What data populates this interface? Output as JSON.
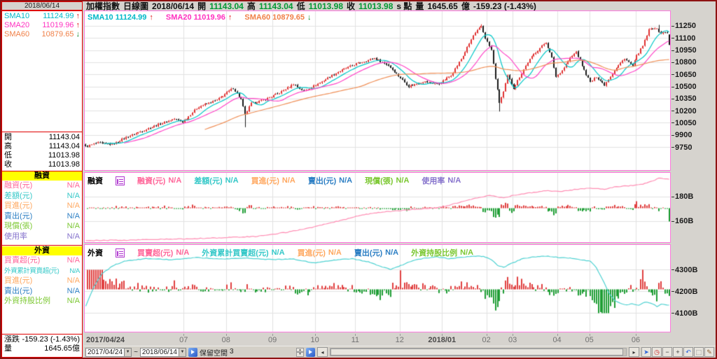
{
  "window": {
    "date_box": "2018/06/14",
    "title": {
      "name": "加權指數",
      "period": "日線圖",
      "date": "2018/06/14",
      "open_label": "開",
      "open": "11143.04",
      "high_label": "高",
      "high": "11143.04",
      "low_label": "低",
      "low": "11013.98",
      "close_label": "收",
      "close": "11013.98",
      "session": "s 點",
      "volume_label": "量",
      "volume": "1645.65",
      "volume_unit": "億",
      "change": "-159.23 (-1.43%)"
    }
  },
  "sidebar": {
    "sma": [
      {
        "label": "SMA10",
        "value": "11124.99",
        "arrow": "↑",
        "color": "#00b8c8",
        "arrow_color": "#e01010"
      },
      {
        "label": "SMA20",
        "value": "11019.96",
        "arrow": "↑",
        "color": "#ff30c0",
        "arrow_color": "#e01010"
      },
      {
        "label": "SMA60",
        "value": "10879.65",
        "arrow": "↓",
        "color": "#f08048",
        "arrow_color": "#0a8a28"
      }
    ],
    "ohlc": [
      {
        "label": "開",
        "value": "11143.04"
      },
      {
        "label": "高",
        "value": "11143.04"
      },
      {
        "label": "低",
        "value": "11013.98"
      },
      {
        "label": "收",
        "value": "11013.98"
      }
    ],
    "margin_section": {
      "header": "融資",
      "rows": [
        {
          "label": "融資(元)",
          "value": "N/A",
          "color": "#ff6699"
        },
        {
          "label": "差額(元)",
          "value": "N/A",
          "color": "#35c8c8"
        },
        {
          "label": "買進(元)",
          "value": "N/A",
          "color": "#ffa860"
        },
        {
          "label": "賣出(元)",
          "value": "N/A",
          "color": "#2d7fc4"
        },
        {
          "label": "現償(張)",
          "value": "N/A",
          "color": "#7cc832"
        },
        {
          "label": "使用率",
          "value": "N/A",
          "color": "#8572cc"
        }
      ]
    },
    "foreign_section": {
      "header": "外資",
      "rows": [
        {
          "label": "買賣超(元)",
          "value": "N/A",
          "color": "#ff6699"
        },
        {
          "label": "外資累計買賣超(元)",
          "value": "N/A",
          "color": "#35c8c8"
        },
        {
          "label": "買進(元)",
          "value": "N/A",
          "color": "#ffa860"
        },
        {
          "label": "賣出(元)",
          "value": "N/A",
          "color": "#2d7fc4"
        },
        {
          "label": "外資持股比例",
          "value": "N/A",
          "color": "#7cc832"
        }
      ]
    },
    "bottom": {
      "change_label": "漲跌",
      "change": "-159.23 (-1.43%)",
      "volume_label": "量",
      "volume": "1645.65億"
    }
  },
  "main_header": {
    "items": [
      {
        "label": "SMA10",
        "value": "11124.99",
        "arrow": "↑",
        "color": "#00b8c8",
        "arrow_color": "#e01010"
      },
      {
        "label": "SMA20",
        "value": "11019.96",
        "arrow": "↑",
        "color": "#ff30c0",
        "arrow_color": "#e01010"
      },
      {
        "label": "SMA60",
        "value": "10879.65",
        "arrow": "↓",
        "color": "#f08048",
        "arrow_color": "#0a8a28"
      }
    ]
  },
  "middle_header": {
    "title": "融資",
    "fields": [
      {
        "label": "融資(元)",
        "value": "N/A",
        "color": "#ff6699"
      },
      {
        "label": "差額(元)",
        "value": "N/A",
        "color": "#35c8c8"
      },
      {
        "label": "買進(元)",
        "value": "N/A",
        "color": "#ffa860"
      },
      {
        "label": "賣出(元)",
        "value": "N/A",
        "color": "#2d7fc4"
      },
      {
        "label": "現償(張)",
        "value": "N/A",
        "color": "#7cc832"
      },
      {
        "label": "使用率",
        "value": "N/A",
        "color": "#8572cc"
      }
    ]
  },
  "bottom_header": {
    "title": "外資",
    "fields": [
      {
        "label": "買賣超(元)",
        "value": "N/A",
        "color": "#ff6699"
      },
      {
        "label": "外資累計買賣超(元)",
        "value": "N/A",
        "color": "#35c8c8"
      },
      {
        "label": "買進(元)",
        "value": "N/A",
        "color": "#ffa860"
      },
      {
        "label": "賣出(元)",
        "value": "N/A",
        "color": "#2d7fc4"
      },
      {
        "label": "外資持股比例",
        "value": "N/A",
        "color": "#7cc832"
      }
    ]
  },
  "statusbar": {
    "from_date": "2017/04/24",
    "tilde": "~",
    "to_date": "2018/06/14",
    "dropdown_glyph": "▼",
    "keep_space_label": "保留空間",
    "keep_space_value": "3",
    "spin_up": "▴",
    "spin_down": "▾",
    "left_arrow": "◂",
    "right_arrow": "▸",
    "tools": [
      {
        "name": "cursor",
        "glyph": "➤",
        "color": "#2a62d9"
      },
      {
        "name": "clock",
        "glyph": "◷",
        "color": "#cc2222"
      },
      {
        "name": "zoom-out",
        "glyph": "−",
        "color": "#333333"
      },
      {
        "name": "zoom-in",
        "glyph": "+",
        "color": "#333333"
      },
      {
        "name": "undo",
        "glyph": "↶",
        "color": "#2a62d9"
      },
      {
        "name": "select-region",
        "glyph": "⬚",
        "color": "#555555"
      },
      {
        "name": "draw",
        "glyph": "✎",
        "color": "#8a5a2a"
      }
    ]
  },
  "chart_data": [
    {
      "type": "candlestick",
      "name": "加權指數 日線圖",
      "date_range": [
        "2017/04/24",
        "2018/06/14"
      ],
      "total_days": 290,
      "ylim": [
        9464,
        11432
      ],
      "yticks": [
        11250,
        11100,
        10950,
        10800,
        10650,
        10500,
        10350,
        10200,
        10050,
        9900,
        9750
      ],
      "month_ticks": [
        [
          "2017/04/24",
          0
        ],
        [
          "07",
          49
        ],
        [
          "08",
          70
        ],
        [
          "09",
          93
        ],
        [
          "10",
          114
        ],
        [
          "11",
          134
        ],
        [
          "12",
          156
        ],
        [
          "2018/01",
          177
        ],
        [
          "02",
          199
        ],
        [
          "03",
          212
        ],
        [
          "04",
          234
        ],
        [
          "05",
          250
        ],
        [
          "06",
          273
        ]
      ],
      "close_anchors": [
        [
          0,
          9755
        ],
        [
          6,
          9800
        ],
        [
          13,
          9780
        ],
        [
          20,
          9870
        ],
        [
          27,
          9940
        ],
        [
          35,
          10020
        ],
        [
          44,
          10100
        ],
        [
          48,
          10060
        ],
        [
          56,
          10250
        ],
        [
          65,
          10330
        ],
        [
          73,
          10480
        ],
        [
          77,
          10340
        ],
        [
          79,
          10150
        ],
        [
          82,
          10290
        ],
        [
          88,
          10330
        ],
        [
          96,
          10420
        ],
        [
          103,
          10530
        ],
        [
          108,
          10440
        ],
        [
          117,
          10560
        ],
        [
          125,
          10680
        ],
        [
          134,
          10780
        ],
        [
          143,
          10850
        ],
        [
          150,
          10760
        ],
        [
          155,
          10630
        ],
        [
          160,
          10500
        ],
        [
          167,
          10560
        ],
        [
          175,
          10530
        ],
        [
          181,
          10640
        ],
        [
          187,
          10880
        ],
        [
          192,
          11130
        ],
        [
          196,
          11250
        ],
        [
          198,
          11100
        ],
        [
          201,
          10950
        ],
        [
          203,
          10600
        ],
        [
          205,
          10300
        ],
        [
          207,
          10430
        ],
        [
          209,
          10630
        ],
        [
          212,
          10480
        ],
        [
          215,
          10620
        ],
        [
          219,
          10800
        ],
        [
          222,
          10900
        ],
        [
          226,
          11000
        ],
        [
          228,
          11050
        ],
        [
          231,
          10850
        ],
        [
          233,
          10620
        ],
        [
          236,
          10700
        ],
        [
          240,
          10850
        ],
        [
          243,
          10930
        ],
        [
          247,
          10700
        ],
        [
          250,
          10550
        ],
        [
          253,
          10620
        ],
        [
          257,
          10520
        ],
        [
          262,
          10700
        ],
        [
          267,
          10850
        ],
        [
          271,
          10750
        ],
        [
          273,
          10880
        ],
        [
          276,
          11000
        ],
        [
          279,
          11200
        ],
        [
          282,
          11230
        ],
        [
          285,
          11160
        ],
        [
          288,
          11175
        ],
        [
          289,
          11013.98
        ]
      ],
      "wick_highs": [
        [
          196,
          11270
        ],
        [
          284,
          11262
        ]
      ],
      "wick_lows": [
        [
          79,
          9995
        ],
        [
          205,
          10189
        ]
      ],
      "last_candle": {
        "open": 11143.04,
        "high": 11143.04,
        "low": 11013.98,
        "close": 11013.98
      },
      "up_color": "#e03030",
      "down_color": "#1a1a1a",
      "grid_color": "#e2e2e2",
      "sma_lines": [
        {
          "period": 10,
          "color": "#00c8c8",
          "value": 11124.99
        },
        {
          "period": 20,
          "color": "#ff44c8",
          "value": 11019.96
        },
        {
          "period": 60,
          "color": "#f09058",
          "value": 10879.65
        }
      ]
    },
    {
      "type": "line+bar",
      "name": "融資",
      "ylim": [
        142.8,
        199.4
      ],
      "yticks": [
        {
          "label": "180B",
          "value": 180
        },
        {
          "label": "160B",
          "value": 160
        }
      ],
      "baseline_frac": 0.505,
      "line_color": "#ff8fb5",
      "bar_up_color": "#e04040",
      "bar_down_color": "#1f9e35",
      "line_anchors": [
        [
          0,
          144
        ],
        [
          25,
          144.6
        ],
        [
          50,
          145.5
        ],
        [
          70,
          146.5
        ],
        [
          85,
          147.5
        ],
        [
          100,
          151
        ],
        [
          110,
          154
        ],
        [
          120,
          158
        ],
        [
          130,
          162
        ],
        [
          137,
          165
        ],
        [
          145,
          167
        ],
        [
          155,
          168.5
        ],
        [
          165,
          170
        ],
        [
          173,
          170.5
        ],
        [
          180,
          173
        ],
        [
          187,
          176
        ],
        [
          194,
          179
        ],
        [
          200,
          181
        ],
        [
          203,
          180
        ],
        [
          207,
          179
        ],
        [
          212,
          181
        ],
        [
          220,
          183
        ],
        [
          228,
          185
        ],
        [
          235,
          184
        ],
        [
          243,
          186
        ],
        [
          250,
          187
        ],
        [
          257,
          186
        ],
        [
          262,
          188
        ],
        [
          270,
          189
        ],
        [
          276,
          190
        ],
        [
          281,
          193
        ],
        [
          284,
          195
        ],
        [
          289,
          194
        ]
      ]
    },
    {
      "type": "line+bar",
      "name": "外資",
      "ylim": [
        4013,
        4413
      ],
      "yticks": [
        {
          "label": "4300B",
          "value": 4300
        },
        {
          "label": "4200B",
          "value": 4200
        },
        {
          "label": "4100B",
          "value": 4100
        }
      ],
      "baseline_frac": 0.508,
      "line_color": "#4ed2d2",
      "bar_up_color": "#e04040",
      "bar_down_color": "#1f9e35",
      "line_anchors": [
        [
          0,
          4130
        ],
        [
          4,
          4220
        ],
        [
          8,
          4280
        ],
        [
          14,
          4320
        ],
        [
          20,
          4340
        ],
        [
          30,
          4350
        ],
        [
          42,
          4345
        ],
        [
          55,
          4355
        ],
        [
          68,
          4348
        ],
        [
          80,
          4352
        ],
        [
          92,
          4345
        ],
        [
          103,
          4348
        ],
        [
          113,
          4330
        ],
        [
          122,
          4342
        ],
        [
          132,
          4350
        ],
        [
          140,
          4335
        ],
        [
          146,
          4315
        ],
        [
          151,
          4300
        ],
        [
          156,
          4318
        ],
        [
          162,
          4340
        ],
        [
          168,
          4352
        ],
        [
          174,
          4358
        ],
        [
          180,
          4350
        ],
        [
          186,
          4356
        ],
        [
          192,
          4362
        ],
        [
          197,
          4360
        ],
        [
          201,
          4345
        ],
        [
          204,
          4318
        ],
        [
          207,
          4310
        ],
        [
          211,
          4328
        ],
        [
          216,
          4348
        ],
        [
          222,
          4358
        ],
        [
          228,
          4362
        ],
        [
          234,
          4356
        ],
        [
          240,
          4352
        ],
        [
          246,
          4344
        ],
        [
          250,
          4338
        ],
        [
          253,
          4308
        ],
        [
          256,
          4255
        ],
        [
          259,
          4195
        ],
        [
          262,
          4158
        ],
        [
          265,
          4143
        ],
        [
          268,
          4136
        ],
        [
          271,
          4142
        ],
        [
          274,
          4134
        ],
        [
          277,
          4150
        ],
        [
          280,
          4144
        ],
        [
          283,
          4130
        ],
        [
          285,
          4140
        ],
        [
          289,
          4136
        ]
      ]
    }
  ]
}
